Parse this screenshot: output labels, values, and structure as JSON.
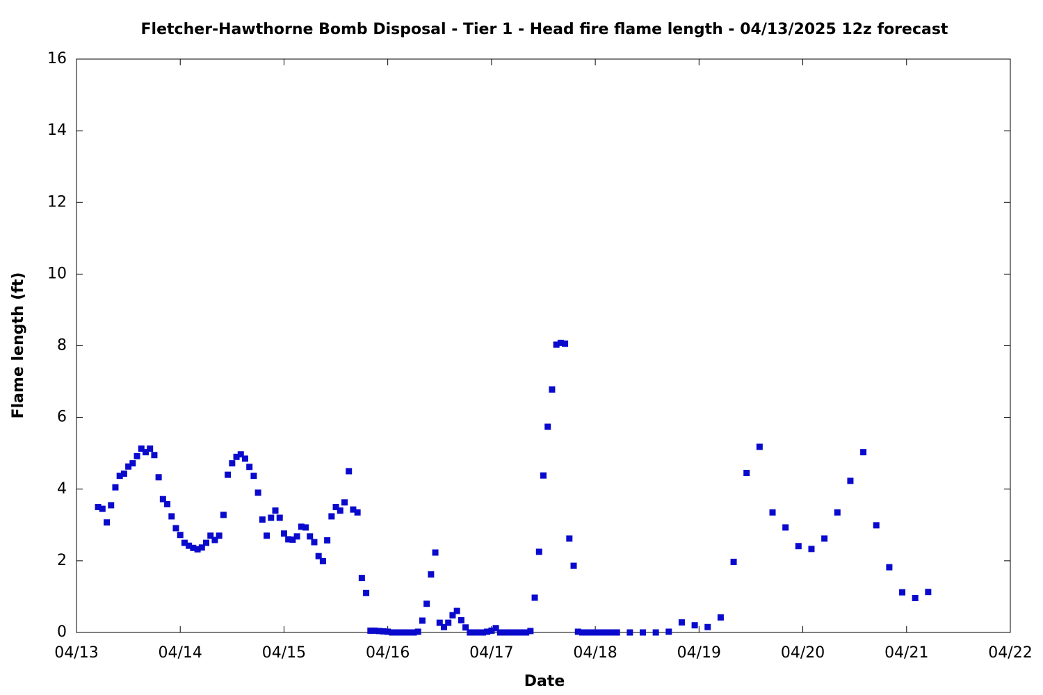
{
  "chart_data": {
    "type": "scatter",
    "title": "Fletcher-Hawthorne Bomb Disposal - Tier 1 - Head fire flame length - 04/13/2025 12z forecast",
    "xlabel": "Date",
    "ylabel": "Flame length (ft)",
    "xlim": [
      0,
      216
    ],
    "ylim": [
      0,
      16
    ],
    "xticks": [
      {
        "value": 0,
        "label": "04/13"
      },
      {
        "value": 24,
        "label": "04/14"
      },
      {
        "value": 48,
        "label": "04/15"
      },
      {
        "value": 72,
        "label": "04/16"
      },
      {
        "value": 96,
        "label": "04/17"
      },
      {
        "value": 120,
        "label": "04/18"
      },
      {
        "value": 144,
        "label": "04/19"
      },
      {
        "value": 168,
        "label": "04/20"
      },
      {
        "value": 192,
        "label": "04/21"
      },
      {
        "value": 216,
        "label": "04/22"
      }
    ],
    "yticks": [
      0,
      2,
      4,
      6,
      8,
      10,
      12,
      14,
      16
    ],
    "color": "#0a0acd",
    "x": [
      5,
      6,
      7,
      8,
      9,
      10,
      11,
      12,
      13,
      14,
      15,
      16,
      17,
      18,
      19,
      20,
      21,
      22,
      23,
      24,
      25,
      26,
      27,
      28,
      29,
      30,
      31,
      32,
      33,
      34,
      35,
      36,
      37,
      38,
      39,
      40,
      41,
      42,
      43,
      44,
      45,
      46,
      47,
      48,
      49,
      50,
      51,
      52,
      53,
      54,
      55,
      56,
      57,
      58,
      59,
      60,
      61,
      62,
      63,
      64,
      65,
      66,
      67,
      68,
      69,
      70,
      71,
      72,
      73,
      74,
      75,
      76,
      77,
      78,
      79,
      80,
      81,
      82,
      83,
      84,
      85,
      86,
      87,
      88,
      89,
      90,
      91,
      92,
      93,
      94,
      95,
      96,
      97,
      98,
      99,
      100,
      101,
      102,
      103,
      104,
      105,
      106,
      107,
      108,
      109,
      110,
      111,
      112,
      113,
      114,
      115,
      116,
      117,
      118,
      119,
      120,
      121,
      122,
      123,
      124,
      125,
      128,
      131,
      134,
      137,
      140,
      143,
      146,
      149,
      152,
      155,
      158,
      161,
      164,
      167,
      170,
      173,
      176,
      179,
      182,
      185,
      188,
      191,
      194,
      197
    ],
    "y": [
      3.5,
      3.45,
      3.07,
      3.55,
      4.05,
      4.37,
      4.43,
      4.63,
      4.72,
      4.92,
      5.13,
      5.03,
      5.13,
      4.95,
      4.33,
      3.72,
      3.58,
      3.24,
      2.91,
      2.72,
      2.5,
      2.42,
      2.36,
      2.32,
      2.37,
      2.5,
      2.7,
      2.58,
      2.7,
      3.28,
      4.4,
      4.72,
      4.9,
      4.97,
      4.85,
      4.62,
      4.37,
      3.9,
      3.15,
      2.7,
      3.2,
      3.4,
      3.2,
      2.76,
      2.6,
      2.59,
      2.68,
      2.95,
      2.93,
      2.68,
      2.52,
      2.13,
      1.99,
      2.57,
      3.24,
      3.5,
      3.4,
      3.63,
      4.5,
      3.43,
      3.35,
      1.52,
      1.1,
      0.05,
      0.05,
      0.04,
      0.03,
      0.02,
      0,
      0,
      0,
      0,
      0,
      0,
      0.02,
      0.33,
      0.8,
      1.62,
      2.23,
      0.27,
      0.15,
      0.27,
      0.48,
      0.6,
      0.34,
      0.14,
      0,
      0,
      0,
      0,
      0.02,
      0.05,
      0.12,
      0,
      0,
      0,
      0,
      0,
      0,
      0,
      0.04,
      0.97,
      2.25,
      4.38,
      5.74,
      6.78,
      8.03,
      8.08,
      8.06,
      2.62,
      1.86,
      0.02,
      0,
      0,
      0,
      0,
      0,
      0,
      0,
      0,
      0,
      0,
      0,
      0,
      0.02,
      0.28,
      0.2,
      0.15,
      0.42,
      1.97,
      4.45,
      5.18,
      3.35,
      2.93,
      2.41,
      2.33,
      2.62,
      3.35,
      4.23,
      5.03,
      2.99,
      1.82,
      1.12,
      0.96,
      1.13
    ]
  }
}
